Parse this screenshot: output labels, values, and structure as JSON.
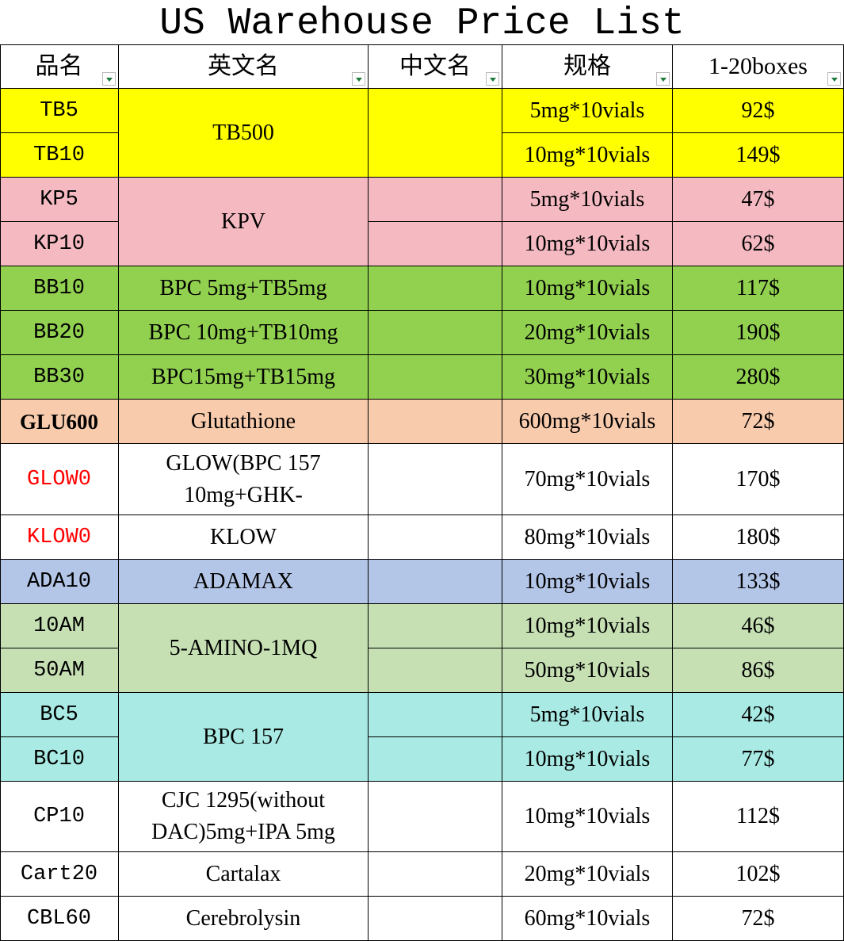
{
  "header": {
    "title": "US Warehouse Price List"
  },
  "table": {
    "columns": [
      "品名",
      "英文名",
      "中文名",
      "规格",
      "1-20boxes"
    ],
    "groups": [
      {
        "english": "TB500",
        "color": "#ffff00",
        "rows": [
          {
            "code": "TB5",
            "spec": "5mg*10vials",
            "price": "92$"
          },
          {
            "code": "TB10",
            "spec": "10mg*10vials",
            "price": "149$"
          }
        ]
      },
      {
        "english": "KPV",
        "color": "#f4b9c1",
        "rows": [
          {
            "code": "KP5",
            "spec": "5mg*10vials",
            "price": "47$"
          },
          {
            "code": "KP10",
            "spec": "10mg*10vials",
            "price": "62$"
          }
        ]
      },
      {
        "english": "BPC 5mg+TB5mg",
        "color": "#92d050",
        "rows": [
          {
            "code": "BB10",
            "spec": "10mg*10vials",
            "price": "117$"
          }
        ]
      },
      {
        "english": "BPC 10mg+TB10mg",
        "color": "#92d050",
        "rows": [
          {
            "code": "BB20",
            "spec": "20mg*10vials",
            "price": "190$"
          }
        ]
      },
      {
        "english": "BPC15mg+TB15mg",
        "color": "#92d050",
        "rows": [
          {
            "code": "BB30",
            "spec": "30mg*10vials",
            "price": "280$"
          }
        ]
      },
      {
        "english": "Glutathione",
        "color": "#f8cbad",
        "rows": [
          {
            "code": "GLU600",
            "spec": "600mg*10vials",
            "price": "72$"
          }
        ]
      },
      {
        "english": "GLOW(BPC 157 10mg+GHK-",
        "color": "#ffffff",
        "code_color": "#ff0000",
        "rows": [
          {
            "code": "GLOW0",
            "spec": "70mg*10vials",
            "price": "170$"
          }
        ]
      },
      {
        "english": "KLOW",
        "color": "#ffffff",
        "code_color": "#ff0000",
        "rows": [
          {
            "code": "KLOW0",
            "spec": "80mg*10vials",
            "price": "180$"
          }
        ]
      },
      {
        "english": "ADAMAX",
        "color": "#b4c6e7",
        "rows": [
          {
            "code": "ADA10",
            "spec": "10mg*10vials",
            "price": "133$"
          }
        ]
      },
      {
        "english": "5-AMINO-1MQ",
        "color": "#c6e0b4",
        "rows": [
          {
            "code": "10AM",
            "spec": "10mg*10vials",
            "price": "46$"
          },
          {
            "code": "50AM",
            "spec": "50mg*10vials",
            "price": "86$"
          }
        ]
      },
      {
        "english": "BPC 157",
        "color": "#a9ebe4",
        "rows": [
          {
            "code": "BC5",
            "spec": "5mg*10vials",
            "price": "42$"
          },
          {
            "code": "BC10",
            "spec": "10mg*10vials",
            "price": "77$"
          }
        ]
      },
      {
        "english": "CJC 1295(without DAC)5mg+IPA 5mg",
        "color": "#ffffff",
        "rows": [
          {
            "code": "CP10",
            "spec": "10mg*10vials",
            "price": "112$"
          }
        ]
      },
      {
        "english": "Cartalax",
        "color": "#ffffff",
        "rows": [
          {
            "code": "Cart20",
            "spec": "20mg*10vials",
            "price": "102$"
          }
        ]
      },
      {
        "english": "Cerebrolysin",
        "color": "#ffffff",
        "rows": [
          {
            "code": "CBL60",
            "spec": "60mg*10vials",
            "price": "72$"
          }
        ]
      }
    ]
  }
}
